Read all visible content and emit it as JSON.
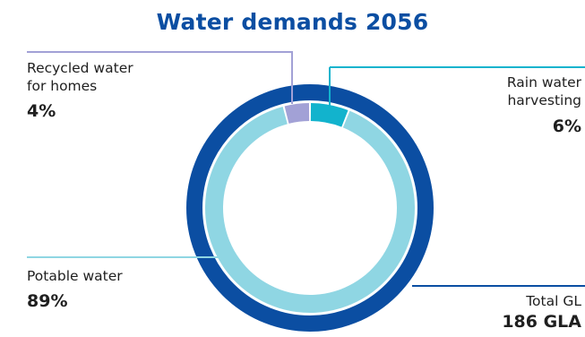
{
  "chart_data": {
    "type": "pie",
    "style": "donut",
    "title": "Water demands 2056",
    "categories": [
      "Rain water harvesting",
      "Potable water",
      "Recycled water for homes"
    ],
    "values": [
      6,
      89,
      4
    ],
    "series": [
      {
        "values": [
          6,
          89,
          4
        ],
        "colors": [
          "#12b3cd",
          "#8fd6e3",
          "#a2a1d6"
        ]
      }
    ],
    "labels": [
      {
        "line1": "Rain water",
        "line2": "harvesting",
        "value_text": "6%"
      },
      {
        "line1": "Potable water",
        "value_text": "89%"
      },
      {
        "line1": "Recycled water",
        "line2": "for homes",
        "value_text": "4%"
      }
    ],
    "total": {
      "label": "Total GL",
      "value": 186,
      "value_text": "186 GLA",
      "color": "#0b4ea2"
    }
  },
  "colors": {
    "title": "#0b4ea2",
    "outer_ring": "#0b4ea2",
    "text": "#1f1f1f"
  }
}
